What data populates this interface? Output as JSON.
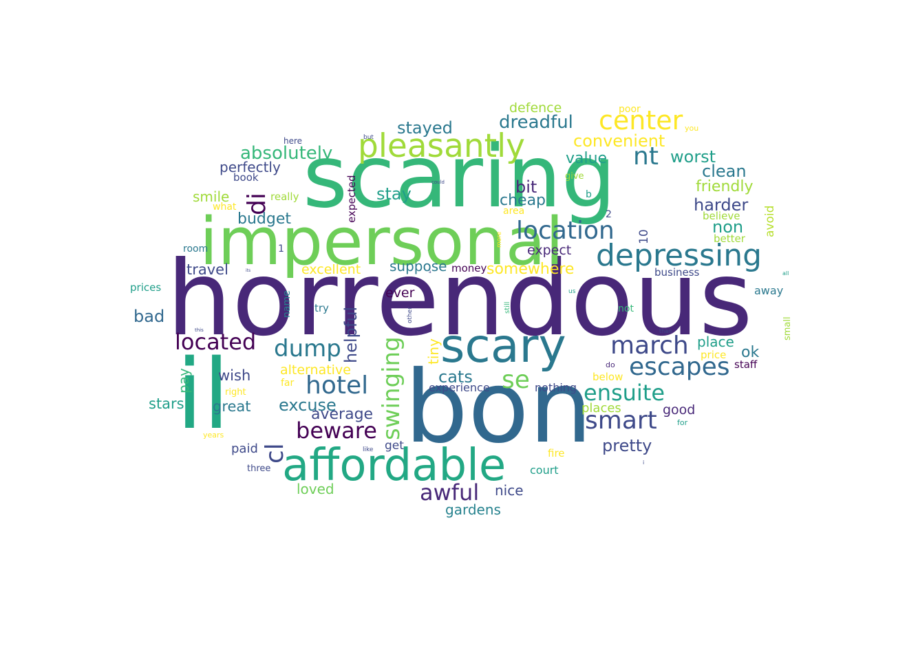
{
  "palette": {
    "p1": "#482878",
    "p2": "#3e4989",
    "p3": "#31688e",
    "p4": "#26828e",
    "p5": "#1f9e89",
    "p6": "#35b779",
    "p7": "#6ece58",
    "p8": "#b5de2b",
    "p9": "#fde725",
    "p10": "#440154",
    "p11": "#a0da39",
    "p12": "#2a788e",
    "p13": "#22a884"
  },
  "words": [
    {
      "text": "horrendous",
      "color": "p1"
    },
    {
      "text": "scaring",
      "color": "p6"
    },
    {
      "text": "bon",
      "color": "p3"
    },
    {
      "text": "il",
      "color": "p13"
    },
    {
      "text": "impersonal",
      "color": "p7"
    },
    {
      "text": "scary",
      "color": "p12"
    },
    {
      "text": "affordable",
      "color": "p13"
    },
    {
      "text": "pleasantly",
      "color": "p11"
    },
    {
      "text": "depressing",
      "color": "p12"
    },
    {
      "text": "center",
      "color": "p9"
    },
    {
      "text": "location",
      "color": "p3"
    },
    {
      "text": "hotel",
      "color": "p3"
    },
    {
      "text": "escapes",
      "color": "p3"
    },
    {
      "text": "march",
      "color": "p2"
    },
    {
      "text": "smart",
      "color": "p2"
    },
    {
      "text": "ensuite",
      "color": "p5"
    },
    {
      "text": "located",
      "color": "p10"
    },
    {
      "text": "dump",
      "color": "p12"
    },
    {
      "text": "swinging",
      "color": "p7"
    },
    {
      "text": "beware",
      "color": "p10"
    },
    {
      "text": "awful",
      "color": "p1"
    },
    {
      "text": "nt",
      "color": "p12"
    },
    {
      "text": "di",
      "color": "p10"
    },
    {
      "text": "se",
      "color": "p7"
    },
    {
      "text": "cl",
      "color": "p2"
    },
    {
      "text": "absolutely",
      "color": "p6"
    },
    {
      "text": "dreadful",
      "color": "p12"
    },
    {
      "text": "stayed",
      "color": "p12"
    },
    {
      "text": "convenient",
      "color": "p9"
    },
    {
      "text": "worst",
      "color": "p5"
    },
    {
      "text": "clean",
      "color": "p12"
    },
    {
      "text": "helpful",
      "color": "p2"
    },
    {
      "text": "excuse",
      "color": "p12"
    },
    {
      "text": "average",
      "color": "p2"
    },
    {
      "text": "pretty",
      "color": "p2"
    },
    {
      "text": "harder",
      "color": "p2"
    },
    {
      "text": "non",
      "color": "p5"
    },
    {
      "text": "budget",
      "color": "p12"
    },
    {
      "text": "perfectly",
      "color": "p2"
    },
    {
      "text": "stay",
      "color": "p5"
    },
    {
      "text": "cats",
      "color": "p12"
    },
    {
      "text": "bit",
      "color": "p1"
    },
    {
      "text": "cheap",
      "color": "p12"
    },
    {
      "text": "value",
      "color": "p5"
    },
    {
      "text": "friendly",
      "color": "p11"
    },
    {
      "text": "ok",
      "color": "p12"
    },
    {
      "text": "place",
      "color": "p5"
    },
    {
      "text": "somewhere",
      "color": "p9"
    },
    {
      "text": "excellent",
      "color": "p9"
    },
    {
      "text": "suppose",
      "color": "p12"
    },
    {
      "text": "alternative",
      "color": "p9"
    },
    {
      "text": "wish",
      "color": "p2"
    },
    {
      "text": "great",
      "color": "p12"
    },
    {
      "text": "stars",
      "color": "p5"
    },
    {
      "text": "bad",
      "color": "p3"
    },
    {
      "text": "travel",
      "color": "p2"
    },
    {
      "text": "smile",
      "color": "p11"
    },
    {
      "text": "defence",
      "color": "p11"
    },
    {
      "text": "expect",
      "color": "p1"
    },
    {
      "text": "ever",
      "color": "p10"
    },
    {
      "text": "tiny",
      "color": "p9"
    },
    {
      "text": "pay",
      "color": "p6"
    },
    {
      "text": "loved",
      "color": "p7"
    },
    {
      "text": "nice",
      "color": "p2"
    },
    {
      "text": "gardens",
      "color": "p4"
    },
    {
      "text": "good",
      "color": "p1"
    },
    {
      "text": "places",
      "color": "p11"
    },
    {
      "text": "experience",
      "color": "p2"
    },
    {
      "text": "nothing",
      "color": "p2"
    },
    {
      "text": "court",
      "color": "p5"
    },
    {
      "text": "fire",
      "color": "p9"
    },
    {
      "text": "get",
      "color": "p2"
    },
    {
      "text": "paid",
      "color": "p2"
    },
    {
      "text": "three",
      "color": "p2"
    },
    {
      "text": "10",
      "color": "p2"
    },
    {
      "text": "avoid",
      "color": "p8"
    },
    {
      "text": "better",
      "color": "p11"
    },
    {
      "text": "believe",
      "color": "p11"
    },
    {
      "text": "business",
      "color": "p2"
    },
    {
      "text": "away",
      "color": "p12"
    },
    {
      "text": "staff",
      "color": "p10"
    },
    {
      "text": "price",
      "color": "p9"
    },
    {
      "text": "below",
      "color": "p9"
    },
    {
      "text": "money",
      "color": "p10"
    },
    {
      "text": "area",
      "color": "p9"
    },
    {
      "text": "expected",
      "color": "p10"
    },
    {
      "text": "book",
      "color": "p2"
    },
    {
      "text": "really",
      "color": "p11"
    },
    {
      "text": "what",
      "color": "p9"
    },
    {
      "text": "room",
      "color": "p12"
    },
    {
      "text": "prices",
      "color": "p5"
    },
    {
      "text": "name",
      "color": "p4"
    },
    {
      "text": "try",
      "color": "p12"
    },
    {
      "text": "far",
      "color": "p9"
    },
    {
      "text": "right",
      "color": "p9"
    },
    {
      "text": "years",
      "color": "p9"
    },
    {
      "text": "poor",
      "color": "p9"
    },
    {
      "text": "here",
      "color": "p2"
    },
    {
      "text": "you",
      "color": "p9"
    },
    {
      "text": "small",
      "color": "p11"
    },
    {
      "text": "not",
      "color": "p6"
    },
    {
      "text": "give",
      "color": "p11"
    },
    {
      "text": "b",
      "color": "p5"
    },
    {
      "text": "2",
      "color": "p2"
    },
    {
      "text": "1",
      "color": "p2"
    },
    {
      "text": "do",
      "color": "p1"
    },
    {
      "text": "for",
      "color": "p5"
    },
    {
      "text": "more",
      "color": "p9"
    },
    {
      "text": "still",
      "color": "p6"
    },
    {
      "text": "other",
      "color": "p2"
    },
    {
      "text": "like",
      "color": "p2"
    },
    {
      "text": "but",
      "color": "p2"
    },
    {
      "text": "could",
      "color": "p2"
    },
    {
      "text": "us",
      "color": "p5"
    },
    {
      "text": "all",
      "color": "p5"
    },
    {
      "text": "its",
      "color": "p2"
    },
    {
      "text": "than",
      "color": "p2"
    },
    {
      "text": "this",
      "color": "p2"
    },
    {
      "text": "i",
      "color": "p2"
    },
    {
      "text": "a",
      "color": "p2"
    }
  ]
}
